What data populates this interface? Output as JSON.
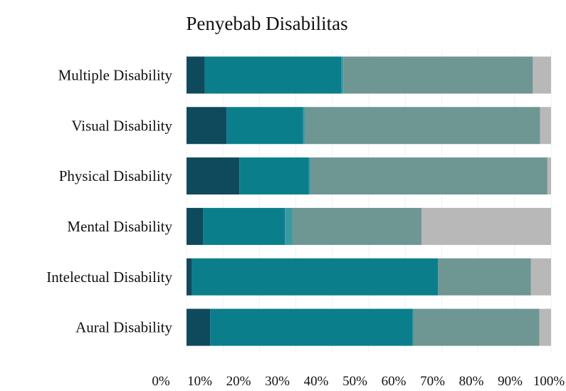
{
  "chart_data": {
    "type": "bar",
    "orientation": "horizontal",
    "stacked": true,
    "title": "Penyebab Disabilitas",
    "xlabel": "",
    "ylabel": "",
    "legend": "none",
    "grid": true,
    "xlim": [
      0,
      100
    ],
    "x_ticks": [
      "0%",
      "10%",
      "20%",
      "30%",
      "40%",
      "50%",
      "60%",
      "70%",
      "80%",
      "90%",
      "100%"
    ],
    "categories": [
      "Multiple Disability",
      "Visual Disability",
      "Physical Disability",
      "Mental Disability",
      "Intelectual Disability",
      "Aural Disability"
    ],
    "series": [
      {
        "color": "#0f4a5c",
        "values": [
          5,
          11,
          14.5,
          4.5,
          1.5,
          6.5
        ]
      },
      {
        "color": "#0b7e8c",
        "values": [
          37.5,
          21,
          19,
          22.5,
          67.5,
          55.5
        ]
      },
      {
        "color": "#3a9aa2",
        "values": [
          0.5,
          0.5,
          0.5,
          2,
          0,
          0.3
        ]
      },
      {
        "color": "#6e9693",
        "values": [
          52,
          64.5,
          65,
          35.5,
          25.5,
          34.5
        ]
      },
      {
        "color": "#b8b8b8",
        "values": [
          5,
          3,
          1,
          35.5,
          5.5,
          3.2
        ]
      }
    ]
  }
}
